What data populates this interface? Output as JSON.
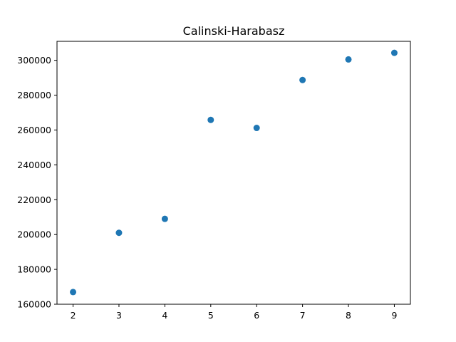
{
  "chart_data": {
    "type": "scatter",
    "title": "Calinski-Harabasz",
    "xlabel": "",
    "ylabel": "",
    "x": [
      2,
      3,
      4,
      5,
      6,
      7,
      8,
      9
    ],
    "y": [
      167000,
      201000,
      209000,
      265800,
      261200,
      288700,
      300500,
      304300
    ],
    "xlim": [
      1.65,
      9.35
    ],
    "ylim": [
      160000,
      310900
    ],
    "xticks": [
      2,
      3,
      4,
      5,
      6,
      7,
      8,
      9
    ],
    "yticks": [
      160000,
      180000,
      200000,
      220000,
      240000,
      260000,
      280000,
      300000
    ],
    "xtick_labels": [
      "2",
      "3",
      "4",
      "5",
      "6",
      "7",
      "8",
      "9"
    ],
    "ytick_labels": [
      "160000",
      "180000",
      "200000",
      "220000",
      "240000",
      "260000",
      "280000",
      "300000"
    ],
    "grid": false,
    "legend": "none",
    "marker_color": "#1f77b4"
  }
}
